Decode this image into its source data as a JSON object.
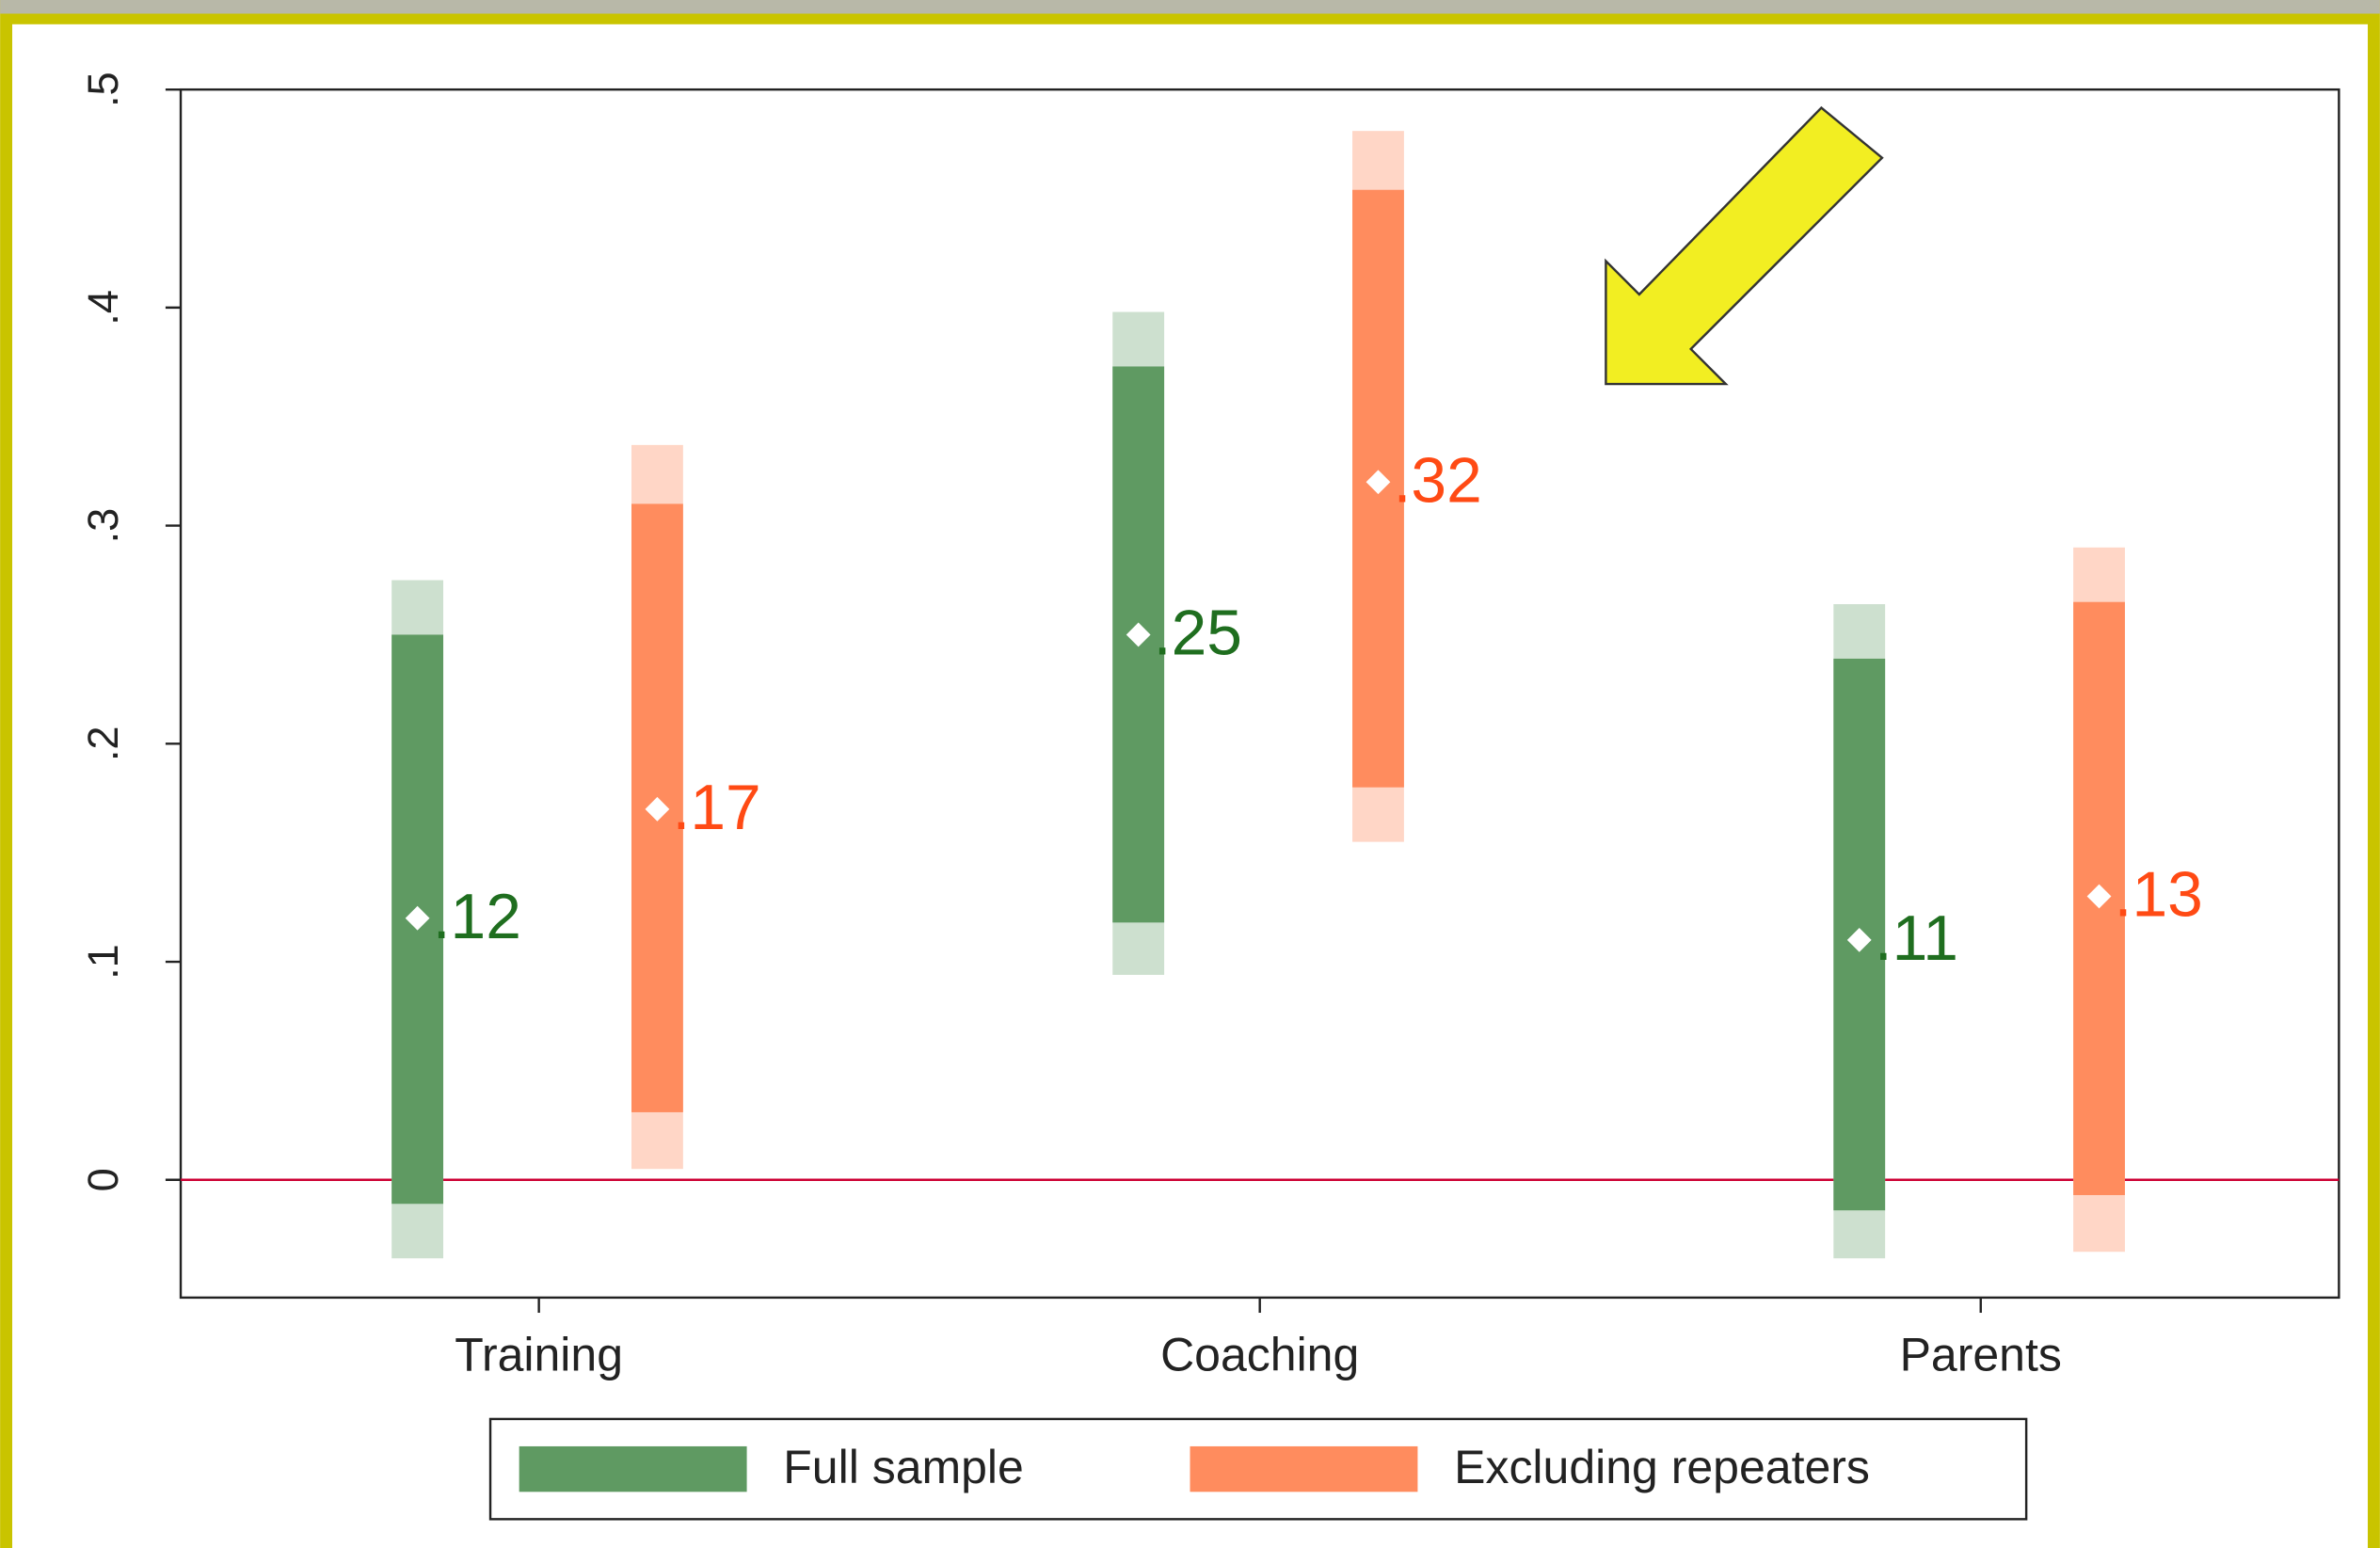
{
  "chart_data": {
    "type": "coefplot",
    "categories": [
      "Training",
      "Coaching",
      "Parents"
    ],
    "ylim": [
      -0.054,
      0.5
    ],
    "yticks": [
      0,
      {
        "value": 0.1,
        "label": ".1"
      },
      {
        "value": 0.2,
        "label": ".2"
      },
      {
        "value": 0.3,
        "label": ".3"
      },
      {
        "value": 0.4,
        "label": ".4"
      },
      {
        "value": 0.5,
        "label": ".5"
      }
    ],
    "reference_line": 0,
    "reference_line_color": "#cc0033",
    "series": [
      {
        "name": "Full sample",
        "color": "#5f9a62",
        "light_color": "#cde0cf",
        "label_color": "#1f6e1f",
        "values": [
          0.12,
          0.25,
          0.11
        ],
        "value_labels": [
          ".12",
          ".25",
          ".11"
        ],
        "inner_ci_low": [
          -0.011,
          0.118,
          -0.014
        ],
        "inner_ci_high": [
          0.25,
          0.373,
          0.239
        ],
        "outer_ci_low": [
          -0.036,
          0.094,
          -0.036
        ],
        "outer_ci_high": [
          0.275,
          0.398,
          0.264
        ]
      },
      {
        "name": "Excluding repeaters",
        "color": "#ff8c5e",
        "light_color": "#ffd6c6",
        "label_color": "#ff4a14",
        "values": [
          0.17,
          0.32,
          0.13
        ],
        "value_labels": [
          ".17",
          ".32",
          ".13"
        ],
        "inner_ci_low": [
          0.031,
          0.18,
          -0.007
        ],
        "inner_ci_high": [
          0.31,
          0.454,
          0.265
        ],
        "outer_ci_low": [
          0.005,
          0.155,
          -0.033
        ],
        "outer_ci_high": [
          0.337,
          0.481,
          0.29
        ]
      }
    ]
  }
}
